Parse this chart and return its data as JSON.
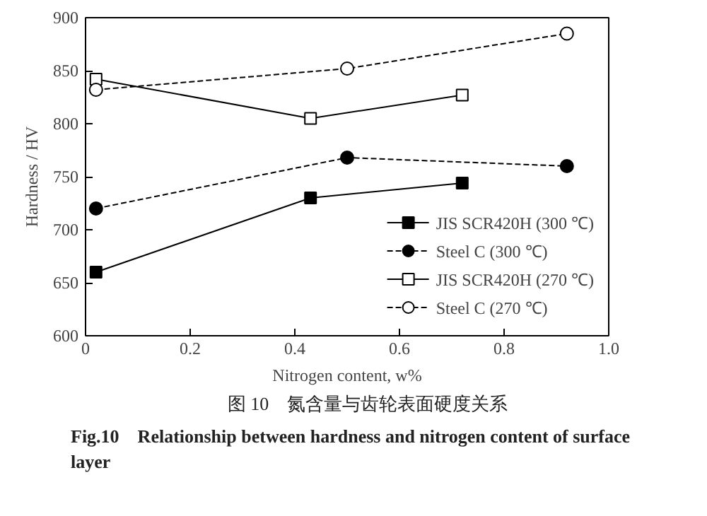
{
  "chart_data": {
    "type": "line",
    "xlabel": "Nitrogen content, w%",
    "ylabel": "Hardness / HV",
    "xlim": [
      0,
      1.0
    ],
    "xticks": [
      {
        "value": 0,
        "label": "0"
      },
      0.2,
      0.4,
      0.6,
      0.8,
      {
        "value": 1.0,
        "label": "1.0"
      }
    ],
    "ylim": [
      600,
      900
    ],
    "yticks": [
      600,
      650,
      700,
      750,
      800,
      850,
      900
    ],
    "grid": false,
    "legend": "bottom right",
    "series": [
      {
        "name": "JIS SCR420H (300 ℃)",
        "color": "#000000",
        "marker": "square",
        "line_style": "solid",
        "x": [
          0.02,
          0.43,
          0.72
        ],
        "values": [
          660,
          730,
          744
        ]
      },
      {
        "name": "Steel C (300 ℃)",
        "color": "#000000",
        "marker": "circle",
        "line_style": "dashed",
        "x": [
          0.02,
          0.5,
          0.92
        ],
        "values": [
          720,
          768,
          760
        ]
      },
      {
        "name": "JIS SCR420H (270 ℃)",
        "color": "#000000",
        "marker": "square",
        "line_style": "solid",
        "x": [
          0.02,
          0.43,
          0.72
        ],
        "values": [
          842,
          805,
          827
        ]
      },
      {
        "name": "Steel C (270 ℃)",
        "color": "#000000",
        "marker": "circle",
        "line_style": "dashed",
        "x": [
          0.02,
          0.5,
          0.92
        ],
        "values": [
          832,
          852,
          885
        ]
      }
    ],
    "annotations": [
      "图 10　氮含量与齿轮表面硬度关系",
      "Fig.10　Relationship between hardness and nitrogen content of surface layer"
    ]
  }
}
